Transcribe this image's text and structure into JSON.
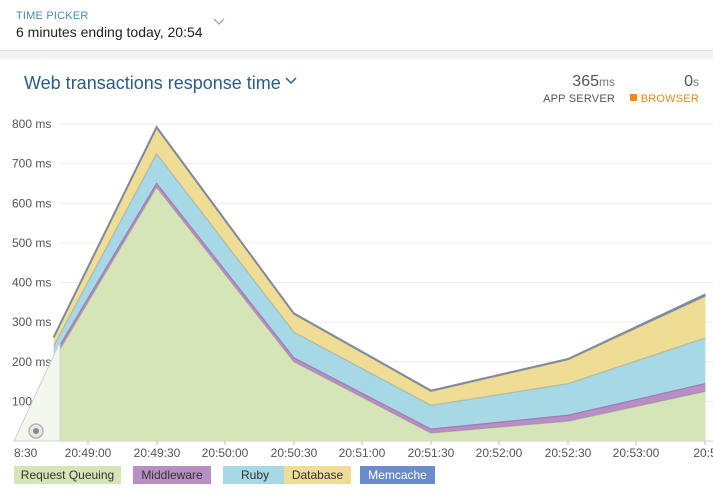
{
  "time_picker": {
    "label": "TIME PICKER",
    "value": "6 minutes ending today, 20:54"
  },
  "panel": {
    "title": "Web transactions response time",
    "app_server": {
      "value": "365",
      "unit": "ms",
      "label": "APP SERVER"
    },
    "browser": {
      "value": "0",
      "unit": "s",
      "label": "BROWSER"
    }
  },
  "colors": {
    "request_queuing": "#d5e5b8",
    "middleware": "#b98ec4",
    "ruby": "#a6d8e6",
    "database": "#f0dd95",
    "memcache": "#6a8ccc",
    "outline": "#8a8a8a"
  },
  "legend": {
    "request_queuing": "Request Queuing",
    "middleware": "Middleware",
    "ruby": "Ruby",
    "database": "Database",
    "memcache": "Memcache"
  },
  "chart_data": {
    "type": "area",
    "stacked": true,
    "ylabel_ticks": [
      "100 ms",
      "200 ms",
      "300 ms",
      "400 ms",
      "500 ms",
      "600 ms",
      "700 ms",
      "800 ms"
    ],
    "x_ticks": [
      "8:30",
      "20:49:00",
      "20:49:30",
      "20:50:00",
      "20:50:30",
      "20:51:00",
      "20:51:30",
      "20:52:00",
      "20:52:30",
      "20:53:00",
      "20:5"
    ],
    "x": [
      "20:48:45",
      "20:49:30",
      "20:50:30",
      "20:51:30",
      "20:52:30",
      "20:53:30"
    ],
    "ylim": [
      0,
      800
    ],
    "grid": true,
    "legend_position": "bottom-left",
    "series": [
      {
        "name": "Request Queuing",
        "values": [
          205,
          640,
          200,
          20,
          50,
          125
        ]
      },
      {
        "name": "Middleware",
        "values": [
          10,
          10,
          10,
          10,
          15,
          20
        ]
      },
      {
        "name": "Ruby",
        "values": [
          25,
          75,
          65,
          60,
          80,
          115
        ]
      },
      {
        "name": "Database",
        "values": [
          20,
          65,
          45,
          35,
          60,
          105
        ]
      },
      {
        "name": "Memcache",
        "values": [
          2,
          2,
          2,
          2,
          2,
          5
        ]
      }
    ]
  }
}
